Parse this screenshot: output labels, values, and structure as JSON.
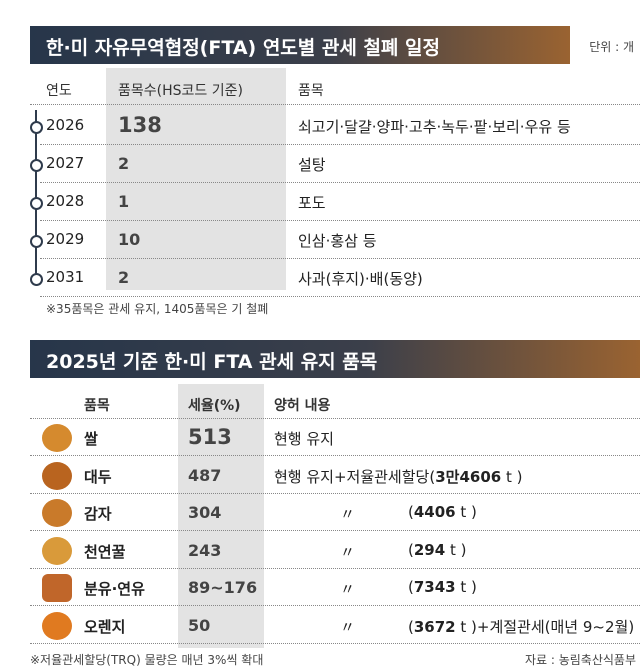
{
  "header": {
    "title": "한·미 자유무역협정(FTA) 연도별 관세 철폐 일정",
    "unit": "단위 : 개"
  },
  "schedule": {
    "columns": [
      "연도",
      "품목수(HS코드 기준)",
      "품목"
    ],
    "rows": [
      [
        "2026",
        "138",
        "쇠고기·달걀·양파·고추·녹두·팥·보리·우유 등"
      ],
      [
        "2027",
        "2",
        "설탕"
      ],
      [
        "2028",
        "1",
        "포도"
      ],
      [
        "2029",
        "10",
        "인삼·홍삼 등"
      ],
      [
        "2031",
        "2",
        "사과(후지)·배(동양)"
      ]
    ],
    "note": "※35품목은 관세 유지, 1405품목은 기 철폐"
  },
  "section2": {
    "title": "2025년 기준 한·미 FTA 관세 유지 품목",
    "columns": [
      "품목",
      "세율(%)",
      "양허 내용"
    ],
    "rows": [
      {
        "item": "쌀",
        "rate": "513",
        "detail": [
          "현행 유지"
        ]
      },
      {
        "item": "대두",
        "rate": "487",
        "detail": [
          "현행 유지+저율관세할당(",
          "3만4606",
          " t )"
        ]
      },
      {
        "item": "감자",
        "rate": "304",
        "ditto": "〃",
        "detail": [
          "(",
          "4406",
          " t )"
        ]
      },
      {
        "item": "천연꿀",
        "rate": "243",
        "ditto": "〃",
        "detail": [
          "(",
          "294",
          " t )"
        ]
      },
      {
        "item": "분유·연유",
        "rate": "89~176",
        "ditto": "〃",
        "detail": [
          "(",
          "7343",
          " t )"
        ]
      },
      {
        "item": "오렌지",
        "rate": "50",
        "ditto": "〃",
        "detail": [
          "(",
          "3672",
          " t )+계절관세(매년 9~2월)"
        ]
      }
    ],
    "note": "※저율관세할당(TRQ) 물량은 매년 3%씩 확대",
    "source": "자료 : 농림축산식품부"
  }
}
